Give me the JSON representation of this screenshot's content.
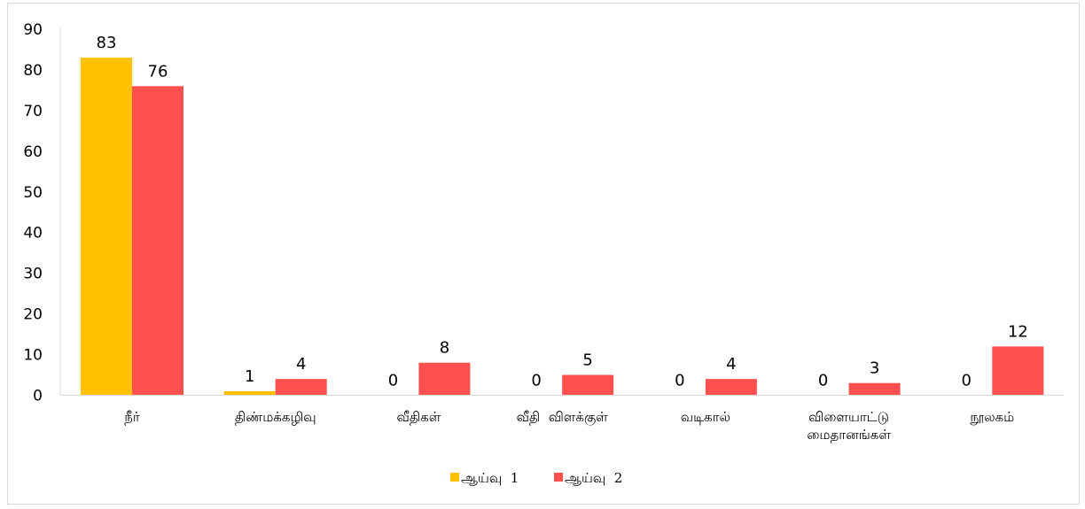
{
  "chart_data": {
    "type": "bar",
    "categories": [
      [
        "நீர்"
      ],
      [
        "திண்மக்கழிவு"
      ],
      [
        "வீதிகள்"
      ],
      [
        "வீதி  விளக்குள்"
      ],
      [
        "வடிகால்"
      ],
      [
        "விளையாட்டு",
        "மைதானங்கள்"
      ],
      [
        "நூலகம்"
      ]
    ],
    "series": [
      {
        "name": "ஆய்வு  1",
        "color": "#FFC000",
        "values": [
          83,
          1,
          0,
          0,
          0,
          0,
          0
        ]
      },
      {
        "name": "ஆய்வு  2",
        "color": "#FF5050",
        "values": [
          76,
          4,
          8,
          5,
          4,
          3,
          12
        ]
      }
    ],
    "ylim": [
      0,
      90
    ],
    "yticks": [
      0,
      10,
      20,
      30,
      40,
      50,
      60,
      70,
      80,
      90
    ],
    "grid": false,
    "legend": "bottom",
    "data_labels": true
  }
}
